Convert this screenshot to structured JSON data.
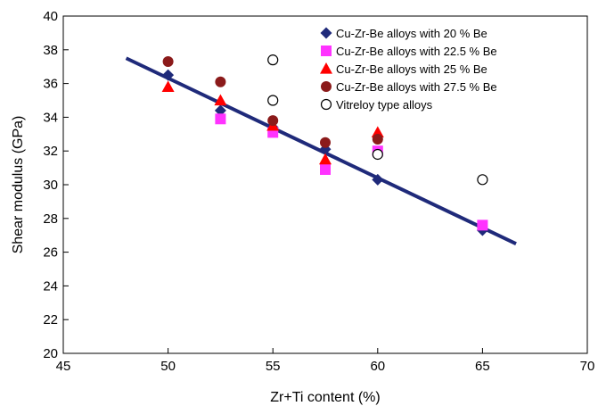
{
  "chart_data": {
    "type": "scatter",
    "title": "",
    "xlabel": "Zr+Ti content (%)",
    "ylabel": "Shear modulus (GPa)",
    "xlim": [
      45,
      70
    ],
    "ylim": [
      20,
      40
    ],
    "xticks": [
      "45",
      "50",
      "55",
      "60",
      "65",
      "70"
    ],
    "yticks": [
      "20",
      "22",
      "24",
      "26",
      "28",
      "30",
      "32",
      "34",
      "36",
      "38",
      "40"
    ],
    "grid": false,
    "legend_position": "top-right",
    "series": [
      {
        "name": "Cu-Zr-Be alloys with 20 % Be",
        "marker": "diamond",
        "color": "#1f2a7a",
        "points": [
          [
            50,
            36.5
          ],
          [
            52.5,
            34.4
          ],
          [
            55,
            33.4
          ],
          [
            57.5,
            32.1
          ],
          [
            60,
            30.3
          ],
          [
            65,
            27.3
          ]
        ]
      },
      {
        "name": "Cu-Zr-Be alloys with 22.5 % Be",
        "marker": "square",
        "color": "#ff33ff",
        "points": [
          [
            52.5,
            33.9
          ],
          [
            55,
            33.1
          ],
          [
            57.5,
            30.9
          ],
          [
            60,
            32.0
          ],
          [
            65,
            27.6
          ]
        ]
      },
      {
        "name": "Cu-Zr-Be alloys with 25 % Be",
        "marker": "triangle",
        "color": "#ff0000",
        "points": [
          [
            50,
            35.8
          ],
          [
            52.5,
            35.0
          ],
          [
            55,
            33.5
          ],
          [
            57.5,
            31.5
          ],
          [
            60,
            33.1
          ]
        ]
      },
      {
        "name": "Cu-Zr-Be alloys with 27.5 % Be",
        "marker": "circle",
        "color": "#8b1a1a",
        "points": [
          [
            50,
            37.3
          ],
          [
            52.5,
            36.1
          ],
          [
            55,
            33.8
          ],
          [
            57.5,
            32.5
          ],
          [
            60,
            32.7
          ]
        ]
      },
      {
        "name": "Vitreloy type alloys",
        "marker": "open-circle",
        "color": "#000000",
        "points": [
          [
            55,
            37.4
          ],
          [
            55,
            35.0
          ],
          [
            60,
            31.8
          ],
          [
            65,
            30.3
          ]
        ]
      }
    ],
    "fit_line": {
      "color": "#1f2a7a",
      "points": [
        [
          48,
          37.5
        ],
        [
          66.6,
          26.5
        ]
      ]
    }
  }
}
